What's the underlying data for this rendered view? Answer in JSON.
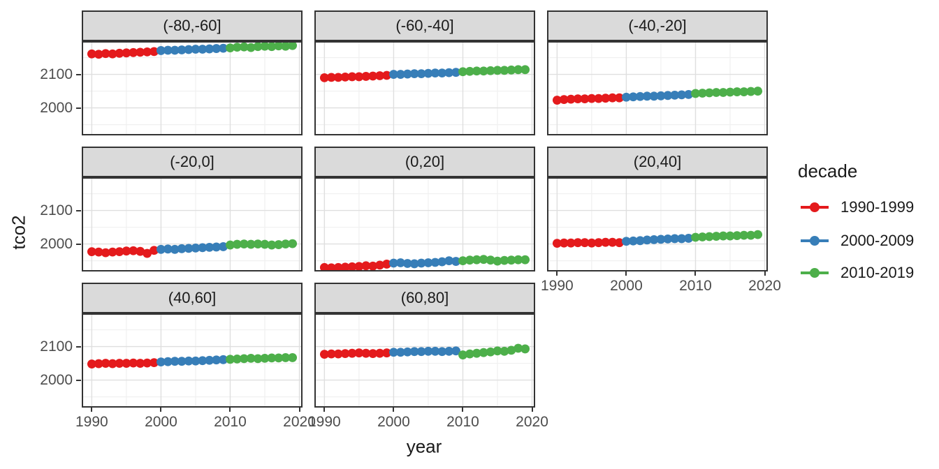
{
  "chart_data": {
    "type": "scatter",
    "title": "",
    "xlabel": "year",
    "ylabel": "tco2",
    "x": [
      1990,
      1991,
      1992,
      1993,
      1994,
      1995,
      1996,
      1997,
      1998,
      1999,
      2000,
      2001,
      2002,
      2003,
      2004,
      2005,
      2006,
      2007,
      2008,
      2009,
      2010,
      2011,
      2012,
      2013,
      2014,
      2015,
      2016,
      2017,
      2018,
      2019
    ],
    "x_ticks": [
      1990,
      2000,
      2010,
      2020
    ],
    "x_minor_ticks": [
      1995,
      2005,
      2015
    ],
    "y_ticks": [
      2000,
      2100
    ],
    "y_minor_ticks": [
      1950,
      2050,
      2150
    ],
    "xlim": [
      1988.55,
      2020.45
    ],
    "ylim": [
      1918,
      2199
    ],
    "grid": true,
    "legend_position": "right",
    "legend": {
      "title": "decade",
      "entries": [
        {
          "label": "1990-1999",
          "color": "#E41A1C"
        },
        {
          "label": "2000-2009",
          "color": "#377EB8"
        },
        {
          "label": "2010-2019",
          "color": "#4DAF4A"
        }
      ]
    },
    "facets": [
      {
        "label": "(-80,-60]",
        "values": [
          2161,
          2160,
          2162,
          2161,
          2163,
          2164,
          2165,
          2166,
          2167,
          2168,
          2171,
          2172,
          2172,
          2173,
          2174,
          2175,
          2175,
          2176,
          2177,
          2178,
          2179,
          2181,
          2182,
          2180,
          2183,
          2184,
          2183,
          2185,
          2184,
          2186
        ]
      },
      {
        "label": "(-60,-40]",
        "values": [
          2090,
          2091,
          2091,
          2092,
          2093,
          2093,
          2094,
          2095,
          2096,
          2097,
          2100,
          2100,
          2101,
          2102,
          2102,
          2103,
          2104,
          2104,
          2105,
          2106,
          2108,
          2109,
          2110,
          2110,
          2111,
          2112,
          2112,
          2113,
          2114,
          2114
        ]
      },
      {
        "label": "(-40,-20]",
        "values": [
          2023,
          2025,
          2026,
          2027,
          2027,
          2028,
          2028,
          2029,
          2030,
          2030,
          2032,
          2033,
          2034,
          2035,
          2035,
          2036,
          2037,
          2038,
          2039,
          2040,
          2043,
          2044,
          2045,
          2046,
          2046,
          2047,
          2048,
          2048,
          2049,
          2050
        ]
      },
      {
        "label": "(-20,0]",
        "values": [
          1977,
          1976,
          1974,
          1976,
          1977,
          1979,
          1980,
          1978,
          1972,
          1981,
          1984,
          1985,
          1984,
          1986,
          1987,
          1988,
          1989,
          1990,
          1991,
          1992,
          1997,
          1999,
          2000,
          1999,
          2000,
          1999,
          1997,
          1998,
          2000,
          2001
        ]
      },
      {
        "label": "(0,20]",
        "values": [
          1930,
          1929,
          1930,
          1931,
          1932,
          1933,
          1935,
          1934,
          1937,
          1940,
          1943,
          1944,
          1942,
          1941,
          1943,
          1944,
          1945,
          1947,
          1950,
          1948,
          1950,
          1952,
          1953,
          1954,
          1952,
          1949,
          1951,
          1952,
          1953,
          1953
        ]
      },
      {
        "label": "(20,40]",
        "values": [
          2002,
          2003,
          2003,
          2004,
          2004,
          2003,
          2004,
          2005,
          2005,
          2004,
          2008,
          2009,
          2010,
          2012,
          2013,
          2014,
          2015,
          2016,
          2016,
          2017,
          2020,
          2021,
          2022,
          2023,
          2024,
          2024,
          2025,
          2026,
          2026,
          2028
        ]
      },
      {
        "label": "(40,60]",
        "values": [
          2048,
          2049,
          2050,
          2049,
          2050,
          2050,
          2051,
          2050,
          2051,
          2052,
          2054,
          2055,
          2056,
          2056,
          2057,
          2057,
          2058,
          2059,
          2060,
          2061,
          2062,
          2063,
          2064,
          2065,
          2064,
          2065,
          2066,
          2066,
          2067,
          2067
        ]
      },
      {
        "label": "(60,80]",
        "values": [
          2077,
          2078,
          2078,
          2079,
          2080,
          2081,
          2080,
          2079,
          2080,
          2081,
          2083,
          2083,
          2084,
          2085,
          2085,
          2086,
          2086,
          2085,
          2086,
          2087,
          2075,
          2078,
          2080,
          2082,
          2084,
          2087,
          2086,
          2089,
          2095,
          2093
        ]
      }
    ]
  },
  "colors": {
    "background": "#FFFFFF",
    "strip_bg": "#DADADA",
    "strip_border": "#333333",
    "panel_border": "#333333",
    "grid_major": "#DFDFDF",
    "grid_minor": "#F0F0F0",
    "tick_label": "#4D4D4D",
    "text": "#1A1A1A"
  }
}
